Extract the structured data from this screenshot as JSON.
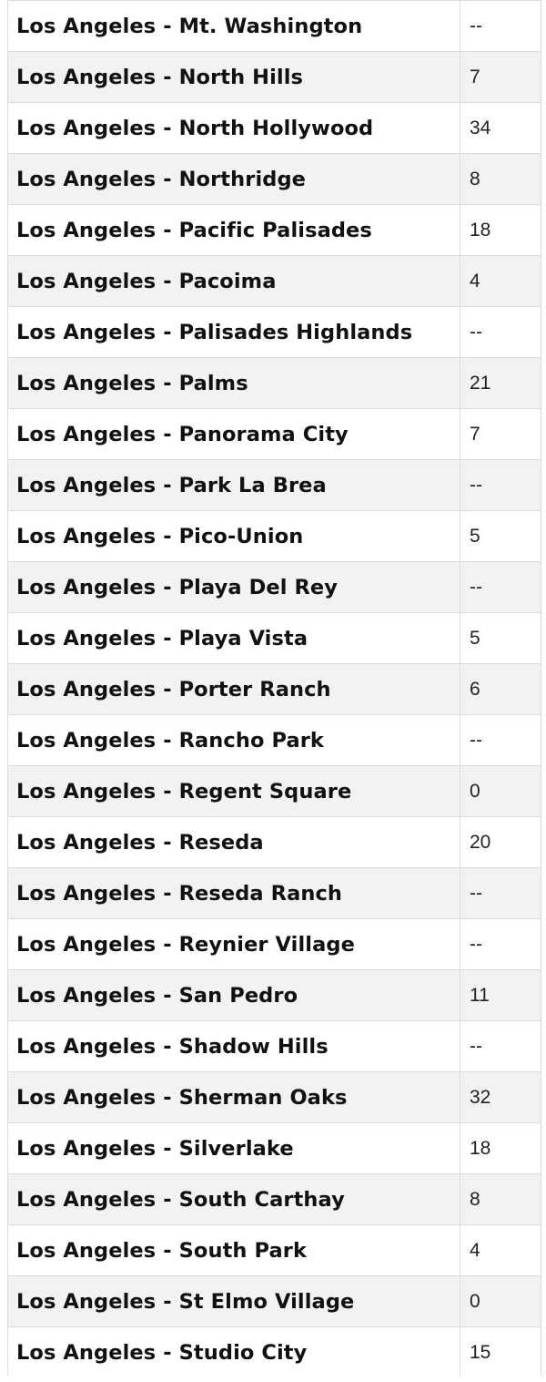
{
  "table": {
    "rows": [
      {
        "name": "Los Angeles - Mt. Washington",
        "value": "--"
      },
      {
        "name": "Los Angeles - North Hills",
        "value": "7"
      },
      {
        "name": "Los Angeles - North Hollywood",
        "value": "34"
      },
      {
        "name": "Los Angeles - Northridge",
        "value": "8"
      },
      {
        "name": "Los Angeles - Pacific Palisades",
        "value": "18"
      },
      {
        "name": "Los Angeles - Pacoima",
        "value": "4"
      },
      {
        "name": "Los Angeles - Palisades Highlands",
        "value": "--"
      },
      {
        "name": "Los Angeles - Palms",
        "value": "21"
      },
      {
        "name": "Los Angeles - Panorama City",
        "value": "7"
      },
      {
        "name": "Los Angeles - Park La Brea",
        "value": "--"
      },
      {
        "name": "Los Angeles - Pico-Union",
        "value": "5"
      },
      {
        "name": "Los Angeles - Playa Del Rey",
        "value": "--"
      },
      {
        "name": "Los Angeles - Playa Vista",
        "value": "5"
      },
      {
        "name": "Los Angeles - Porter Ranch",
        "value": "6"
      },
      {
        "name": "Los Angeles - Rancho Park",
        "value": "--"
      },
      {
        "name": "Los Angeles - Regent Square",
        "value": "0"
      },
      {
        "name": "Los Angeles - Reseda",
        "value": "20"
      },
      {
        "name": "Los Angeles - Reseda Ranch",
        "value": "--"
      },
      {
        "name": "Los Angeles - Reynier Village",
        "value": "--"
      },
      {
        "name": "Los Angeles - San Pedro",
        "value": "11"
      },
      {
        "name": "Los Angeles - Shadow Hills",
        "value": "--"
      },
      {
        "name": "Los Angeles - Sherman Oaks",
        "value": "32"
      },
      {
        "name": "Los Angeles - Silverlake",
        "value": "18"
      },
      {
        "name": "Los Angeles - South Carthay",
        "value": "8"
      },
      {
        "name": "Los Angeles - South Park",
        "value": "4"
      },
      {
        "name": "Los Angeles - St Elmo Village",
        "value": "0"
      },
      {
        "name": "Los Angeles - Studio City",
        "value": "15"
      }
    ]
  }
}
